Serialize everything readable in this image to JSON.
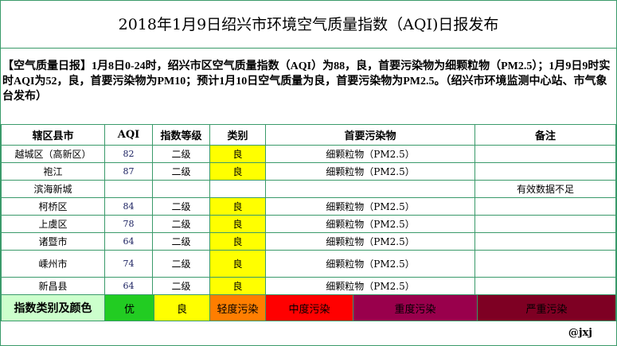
{
  "title": "2018年1月9日绍兴市环境空气质量指数（AQI)日报发布",
  "notice": "【空气质量日报】1月8日0-24时，绍兴市区空气质量指数（AQI）为88，良，首要污染物为细颗粒物（PM2.5）；1月9日9时实时AQI为52，良，首要污染物为PM10；预计1月10日空气质量为良，首要污染物为PM2.5。（绍兴市环境监测中心站、市气象台发布）",
  "table": {
    "headers": [
      "辖区县市",
      "AQI",
      "指数等级",
      "类别",
      "首要污染物",
      "备注"
    ],
    "rows": [
      {
        "district": "越城区（高新区）",
        "aqi": "82",
        "grade": "二级",
        "category": "良",
        "pollutant": "细颗粒物（PM2.5）",
        "note": ""
      },
      {
        "district": "袍江",
        "aqi": "87",
        "grade": "二级",
        "category": "良",
        "pollutant": "细颗粒物（PM2.5）",
        "note": ""
      },
      {
        "district": "滨海新城",
        "aqi": "",
        "grade": "",
        "category": "",
        "pollutant": "",
        "note": "有效数据不足"
      },
      {
        "district": "柯桥区",
        "aqi": "84",
        "grade": "二级",
        "category": "良",
        "pollutant": "细颗粒物（PM2.5）",
        "note": ""
      },
      {
        "district": "上虞区",
        "aqi": "78",
        "grade": "二级",
        "category": "良",
        "pollutant": "细颗粒物（PM2.5）",
        "note": ""
      },
      {
        "district": "诸暨市",
        "aqi": "64",
        "grade": "二级",
        "category": "良",
        "pollutant": "细颗粒物（PM2.5）",
        "note": ""
      },
      {
        "district": "嵊州市",
        "aqi": "74",
        "grade": "二级",
        "category": "良",
        "pollutant": "细颗粒物（PM2.5）",
        "note": ""
      },
      {
        "district": "新昌县",
        "aqi": "64",
        "grade": "二级",
        "category": "良",
        "pollutant": "细颗粒物（PM2.5）",
        "note": ""
      }
    ]
  },
  "legend": {
    "label": "指数类别及颜色",
    "items": [
      {
        "label": "优",
        "color": "#22cc22"
      },
      {
        "label": "良",
        "color": "#ffff00"
      },
      {
        "label": "轻度污染",
        "color": "#ff7e00"
      },
      {
        "label": "中度污染",
        "color": "#ff0000"
      },
      {
        "label": "重度污染",
        "color": "#99004c"
      },
      {
        "label": "严重污染",
        "color": "#7e0023"
      }
    ]
  },
  "footer": "@jxj"
}
